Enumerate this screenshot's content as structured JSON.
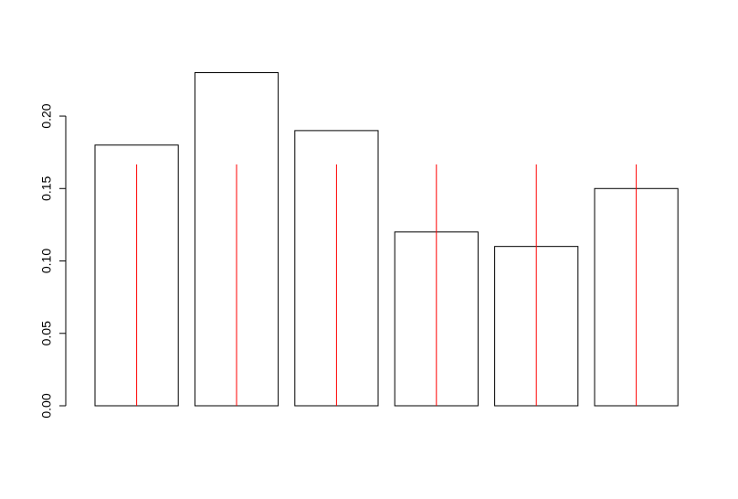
{
  "chart_data": {
    "type": "bar",
    "categories": [
      null,
      null,
      null,
      null,
      null,
      null
    ],
    "values": [
      0.18,
      0.23,
      0.19,
      0.12,
      0.11,
      0.15
    ],
    "color": "#ffffff",
    "edge_color": "#000000",
    "reference_lines": {
      "color": "#ff0000",
      "values": [
        0.1667,
        0.1667,
        0.1667,
        0.1667,
        0.1667,
        0.1667
      ]
    },
    "ylim": [
      0,
      0.23
    ],
    "yticks": [
      {
        "value": 0,
        "label": "0.00"
      },
      0.05,
      {
        "value": 0.1,
        "label": "0.10"
      },
      0.15,
      {
        "value": 0.2,
        "label": "0.20"
      }
    ],
    "grid": false
  }
}
